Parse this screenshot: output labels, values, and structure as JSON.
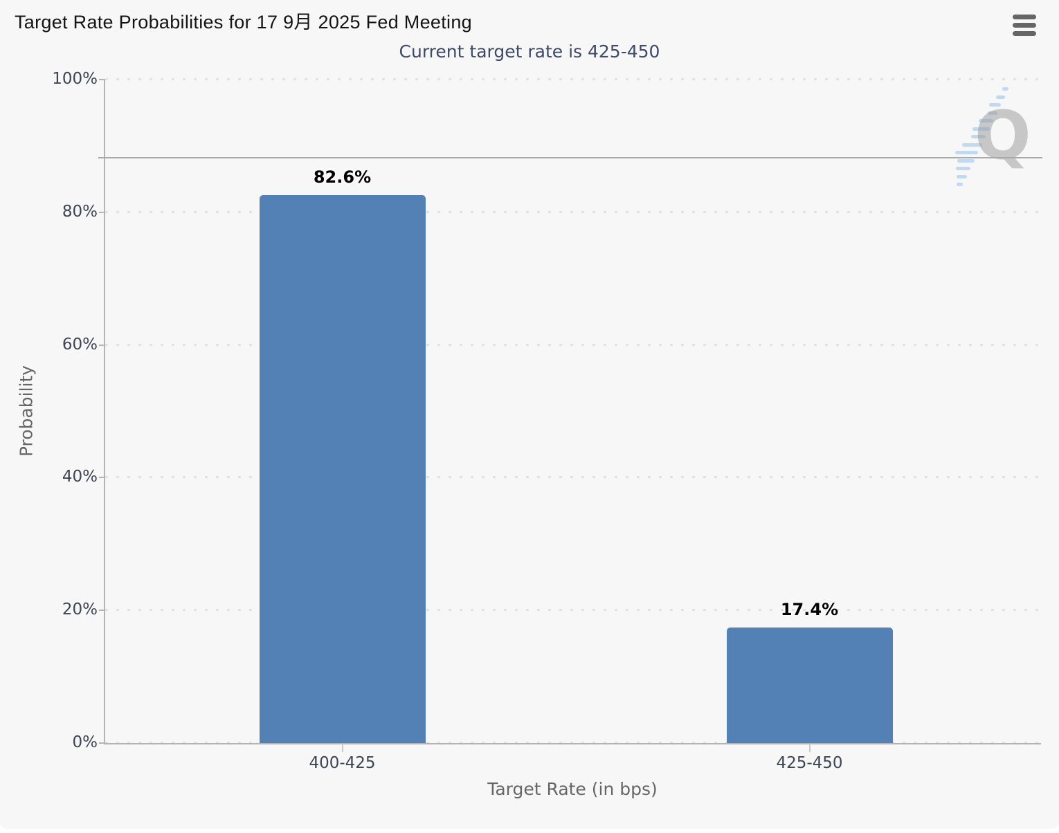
{
  "header": {
    "title": "Target Rate Probabilities for 17 9月 2025 Fed Meeting",
    "subtitle": "Current target rate is 425-450",
    "menu_icon": "hamburger-icon"
  },
  "watermark": {
    "letter": "Q"
  },
  "chart_data": {
    "type": "bar",
    "title": "Target Rate Probabilities for 17 9月 2025 Fed Meeting",
    "subtitle": "Current target rate is 425-450",
    "categories": [
      "400-425",
      "425-450"
    ],
    "values": [
      82.6,
      17.4
    ],
    "data_labels": [
      "82.6%",
      "17.4%"
    ],
    "xlabel": "Target Rate (in bps)",
    "ylabel": "Probability",
    "ylim": [
      0,
      100
    ],
    "ytick_labels": [
      "0%",
      "20%",
      "40%",
      "60%",
      "80%",
      "100%"
    ],
    "grid": "dotted horizontal gridlines at every 20%",
    "legend": "none",
    "reference_line_y": 88.2,
    "bar_color": "#5381b5",
    "colors": {
      "background": "#f7f7f7",
      "title": "#141414",
      "subtitle": "#3e4a67",
      "tick_label": "#3d4453",
      "axis_title": "#666666",
      "axis_line": "#b3b3b3",
      "gridline": "#e1e1e1",
      "reference_line": "#a9a9a9",
      "bar": "#5381b5",
      "menu_icon": "#666666",
      "watermark_gray": "#999999",
      "watermark_blue": "#7db4e8"
    }
  }
}
